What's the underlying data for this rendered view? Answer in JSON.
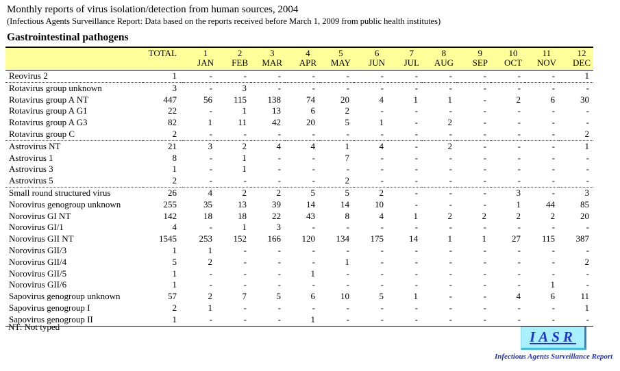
{
  "page": {
    "title": "Monthly reports of virus isolation/detection from human sources, 2004",
    "subtitle": "(Infectious Agents Surveillance Report: Data based on the reports received before March 1, 2009 from public health institutes)",
    "section_heading": "Gastrointestinal pathogens",
    "footnote": "NT: Not typed"
  },
  "logo": {
    "text": "IASR",
    "caption": "Infectious Agents Surveillance Report",
    "bg_color": "#a9f0fe",
    "text_color": "#2233cc",
    "shadow_right_color": "#3a80c0",
    "shadow_bottom_color": "#38c0e8"
  },
  "table": {
    "header_bg": "#ffff99",
    "columns": [
      {
        "num": "",
        "label": "TOTAL"
      },
      {
        "num": "1",
        "label": "JAN"
      },
      {
        "num": "2",
        "label": "FEB"
      },
      {
        "num": "3",
        "label": "MAR"
      },
      {
        "num": "4",
        "label": "APR"
      },
      {
        "num": "5",
        "label": "MAY"
      },
      {
        "num": "6",
        "label": "JUN"
      },
      {
        "num": "7",
        "label": "JUL"
      },
      {
        "num": "8",
        "label": "AUG"
      },
      {
        "num": "9",
        "label": "SEP"
      },
      {
        "num": "10",
        "label": "OCT"
      },
      {
        "num": "11",
        "label": "NOV"
      },
      {
        "num": "12",
        "label": "DEC"
      }
    ],
    "rows": [
      {
        "label": "Reovirus 2",
        "values": [
          "1",
          "-",
          "-",
          "-",
          "-",
          "-",
          "-",
          "-",
          "-",
          "-",
          "-",
          "-",
          "1"
        ],
        "group_end": true
      },
      {
        "label": "Rotavirus group unknown",
        "values": [
          "3",
          "-",
          "3",
          "-",
          "-",
          "-",
          "-",
          "-",
          "-",
          "-",
          "-",
          "-",
          "-"
        ],
        "group_end": false
      },
      {
        "label": "Rotavirus group A NT",
        "values": [
          "447",
          "56",
          "115",
          "138",
          "74",
          "20",
          "4",
          "1",
          "1",
          "-",
          "2",
          "6",
          "30"
        ],
        "group_end": false
      },
      {
        "label": "Rotavirus group A G1",
        "values": [
          "22",
          "-",
          "1",
          "13",
          "6",
          "2",
          "-",
          "-",
          "-",
          "-",
          "-",
          "-",
          "-"
        ],
        "group_end": false
      },
      {
        "label": "Rotavirus group A G3",
        "values": [
          "82",
          "1",
          "11",
          "42",
          "20",
          "5",
          "1",
          "-",
          "2",
          "-",
          "-",
          "-",
          "-"
        ],
        "group_end": false
      },
      {
        "label": "Rotavirus group C",
        "values": [
          "2",
          "-",
          "-",
          "-",
          "-",
          "-",
          "-",
          "-",
          "-",
          "-",
          "-",
          "-",
          "2"
        ],
        "group_end": true
      },
      {
        "label": "Astrovirus NT",
        "values": [
          "21",
          "3",
          "2",
          "4",
          "4",
          "1",
          "4",
          "-",
          "2",
          "-",
          "-",
          "-",
          "1"
        ],
        "group_end": false
      },
      {
        "label": "Astrovirus 1",
        "values": [
          "8",
          "-",
          "1",
          "-",
          "-",
          "7",
          "-",
          "-",
          "-",
          "-",
          "-",
          "-",
          "-"
        ],
        "group_end": false
      },
      {
        "label": "Astrovirus 3",
        "values": [
          "1",
          "-",
          "1",
          "-",
          "-",
          "-",
          "-",
          "-",
          "-",
          "-",
          "-",
          "-",
          "-"
        ],
        "group_end": false
      },
      {
        "label": "Astrovirus 5",
        "values": [
          "2",
          "-",
          "-",
          "-",
          "-",
          "2",
          "-",
          "-",
          "-",
          "-",
          "-",
          "-",
          "-"
        ],
        "group_end": true
      },
      {
        "label": "Small round structured virus",
        "values": [
          "26",
          "4",
          "2",
          "2",
          "5",
          "5",
          "2",
          "-",
          "-",
          "-",
          "3",
          "-",
          "3"
        ],
        "group_end": false
      },
      {
        "label": "Norovirus genogroup unknown",
        "values": [
          "255",
          "35",
          "13",
          "39",
          "14",
          "14",
          "10",
          "-",
          "-",
          "-",
          "1",
          "44",
          "85"
        ],
        "group_end": false
      },
      {
        "label": "Norovirus GI NT",
        "values": [
          "142",
          "18",
          "18",
          "22",
          "43",
          "8",
          "4",
          "1",
          "2",
          "2",
          "2",
          "2",
          "20"
        ],
        "group_end": false
      },
      {
        "label": "Norovirus GI/1",
        "values": [
          "4",
          "-",
          "1",
          "3",
          "-",
          "-",
          "-",
          "-",
          "-",
          "-",
          "-",
          "-",
          "-"
        ],
        "group_end": false
      },
      {
        "label": "Norovirus GII NT",
        "values": [
          "1545",
          "253",
          "152",
          "166",
          "120",
          "134",
          "175",
          "14",
          "1",
          "1",
          "27",
          "115",
          "387"
        ],
        "group_end": false
      },
      {
        "label": "Norovirus GII/3",
        "values": [
          "1",
          "1",
          "-",
          "-",
          "-",
          "-",
          "-",
          "-",
          "-",
          "-",
          "-",
          "-",
          "-"
        ],
        "group_end": false
      },
      {
        "label": "Norovirus GII/4",
        "values": [
          "5",
          "2",
          "-",
          "-",
          "-",
          "1",
          "-",
          "-",
          "-",
          "-",
          "-",
          "-",
          "2"
        ],
        "group_end": false
      },
      {
        "label": "Norovirus GII/5",
        "values": [
          "1",
          "-",
          "-",
          "-",
          "1",
          "-",
          "-",
          "-",
          "-",
          "-",
          "-",
          "-",
          "-"
        ],
        "group_end": false
      },
      {
        "label": "Norovirus GII/6",
        "values": [
          "1",
          "-",
          "-",
          "-",
          "-",
          "-",
          "-",
          "-",
          "-",
          "-",
          "-",
          "1",
          "-"
        ],
        "group_end": false
      },
      {
        "label": "Sapovirus genogroup unknown",
        "values": [
          "57",
          "2",
          "7",
          "5",
          "6",
          "10",
          "5",
          "1",
          "-",
          "-",
          "4",
          "6",
          "11"
        ],
        "group_end": false
      },
      {
        "label": "Sapovirus genogroup I",
        "values": [
          "2",
          "1",
          "-",
          "-",
          "-",
          "-",
          "-",
          "-",
          "-",
          "-",
          "-",
          "-",
          "1"
        ],
        "group_end": false
      },
      {
        "label": "Sapovirus genogroup II",
        "values": [
          "1",
          "-",
          "-",
          "-",
          "1",
          "-",
          "-",
          "-",
          "-",
          "-",
          "-",
          "-",
          "-"
        ],
        "group_end": false
      }
    ]
  }
}
